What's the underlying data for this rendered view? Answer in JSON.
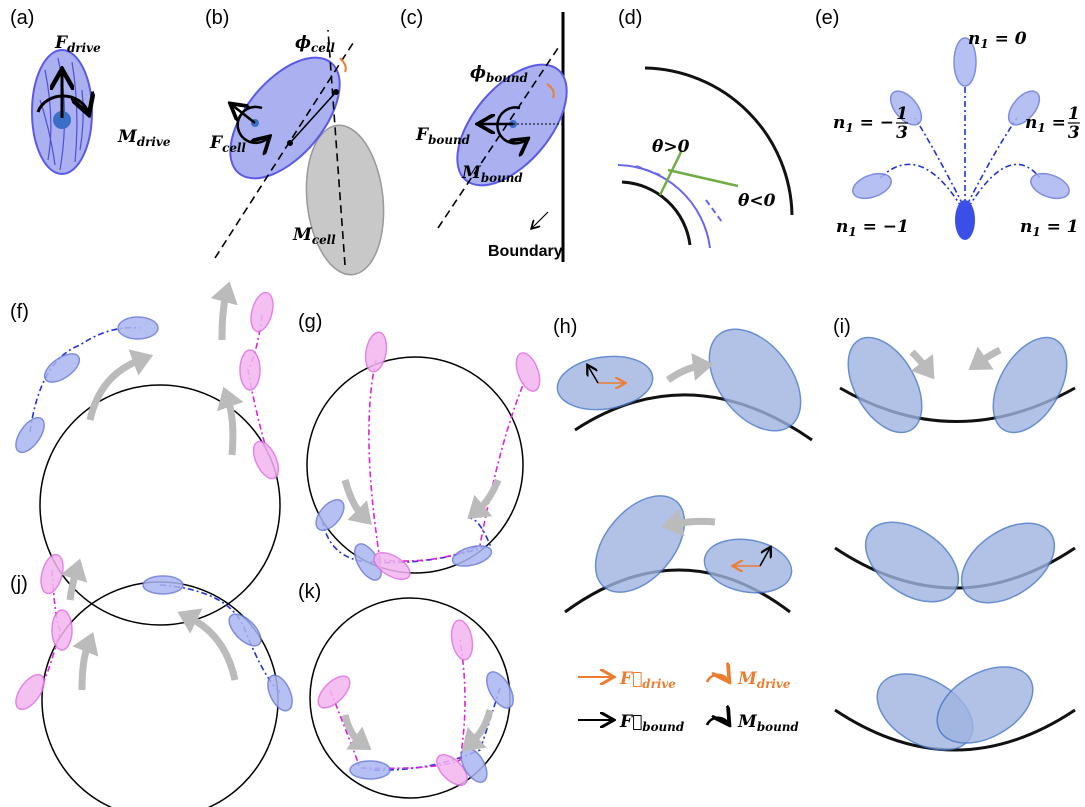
{
  "panel_labels": [
    "(a)",
    "(b)",
    "(c)",
    "(d)",
    "(e)",
    "(f)",
    "(g)",
    "(h)",
    "(i)",
    "(j)",
    "(k)"
  ],
  "a": {
    "force": {
      "base": "F",
      "sub": "drive"
    },
    "moment": {
      "base": "M",
      "sub": "drive"
    }
  },
  "b": {
    "angle": {
      "base": "ϕ",
      "sub": "cell"
    },
    "force": {
      "base": "F",
      "sub": "cell"
    },
    "moment": {
      "base": "M",
      "sub": "cell"
    }
  },
  "c": {
    "angle": {
      "base": "ϕ",
      "sub": "bound"
    },
    "force": {
      "base": "F",
      "sub": "bound"
    },
    "moment": {
      "base": "M",
      "sub": "bound"
    },
    "boundary": "Boundary"
  },
  "d": {
    "positive": "θ>0",
    "negative": "θ<0"
  },
  "e": {
    "modes": [
      {
        "base": "n",
        "sub": "1",
        "rel": " = 0"
      },
      {
        "base": "n",
        "sub": "1",
        "rel": " = −",
        "num": "1",
        "den": "3"
      },
      {
        "base": "n",
        "sub": "1",
        "rel": " = ",
        "num": "1",
        "den": "3"
      },
      {
        "base": "n",
        "sub": "1",
        "rel": " = −1"
      },
      {
        "base": "n",
        "sub": "1",
        "rel": " = 1"
      }
    ]
  },
  "legend": [
    {
      "base": "F⃗",
      "sub": "drive",
      "color": "#ed7d31"
    },
    {
      "base": "M",
      "sub": "drive",
      "color": "#ed7d31"
    },
    {
      "base": "F⃗",
      "sub": "bound",
      "color": "#000000"
    },
    {
      "base": "M",
      "sub": "bound",
      "color": "#000000"
    }
  ]
}
